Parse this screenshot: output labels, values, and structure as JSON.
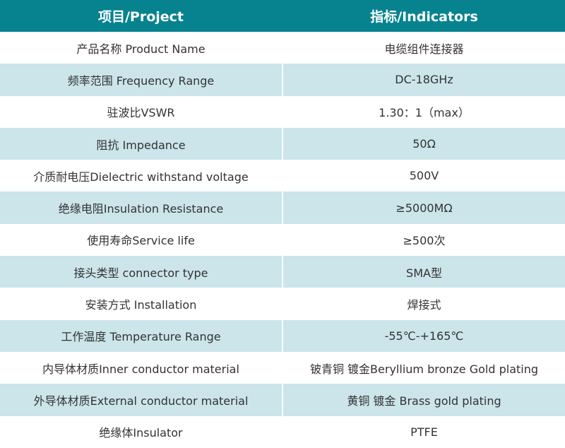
{
  "header": {
    "col1": "项目/Project",
    "col2": "指标/Indicators"
  },
  "colors": {
    "header_bg": "#06838f",
    "alt_row_bg": "#cbe5ea",
    "text": "#333333"
  },
  "rows": [
    {
      "project": "产品名称 Product Name",
      "indicator": "电缆组件连接器"
    },
    {
      "project": "频率范围 Frequency Range",
      "indicator": "DC-18GHz"
    },
    {
      "project": "驻波比VSWR",
      "indicator": "1.30：1（max）"
    },
    {
      "project": "阻抗 Impedance",
      "indicator": "50Ω"
    },
    {
      "project": "介质耐电压Dielectric withstand voltage",
      "indicator": "500V"
    },
    {
      "project": "绝缘电阻Insulation Resistance",
      "indicator": "≥5000MΩ"
    },
    {
      "project": "使用寿命Service life",
      "indicator": "≥500次"
    },
    {
      "project": "接头类型  connector type",
      "indicator": "SMA型"
    },
    {
      "project": "安装方式 Installation",
      "indicator": "焊接式"
    },
    {
      "project": "工作温度 Temperature Range",
      "indicator": "-55℃-+165℃"
    },
    {
      "project": "内导体材质Inner conductor material",
      "indicator": "铍青铜 镀金Beryllium bronze Gold plating"
    },
    {
      "project": "外导体材质External conductor material",
      "indicator": "黄铜 镀金 Brass gold plating"
    },
    {
      "project": "绝缘体Insulator",
      "indicator": "PTFE"
    }
  ]
}
